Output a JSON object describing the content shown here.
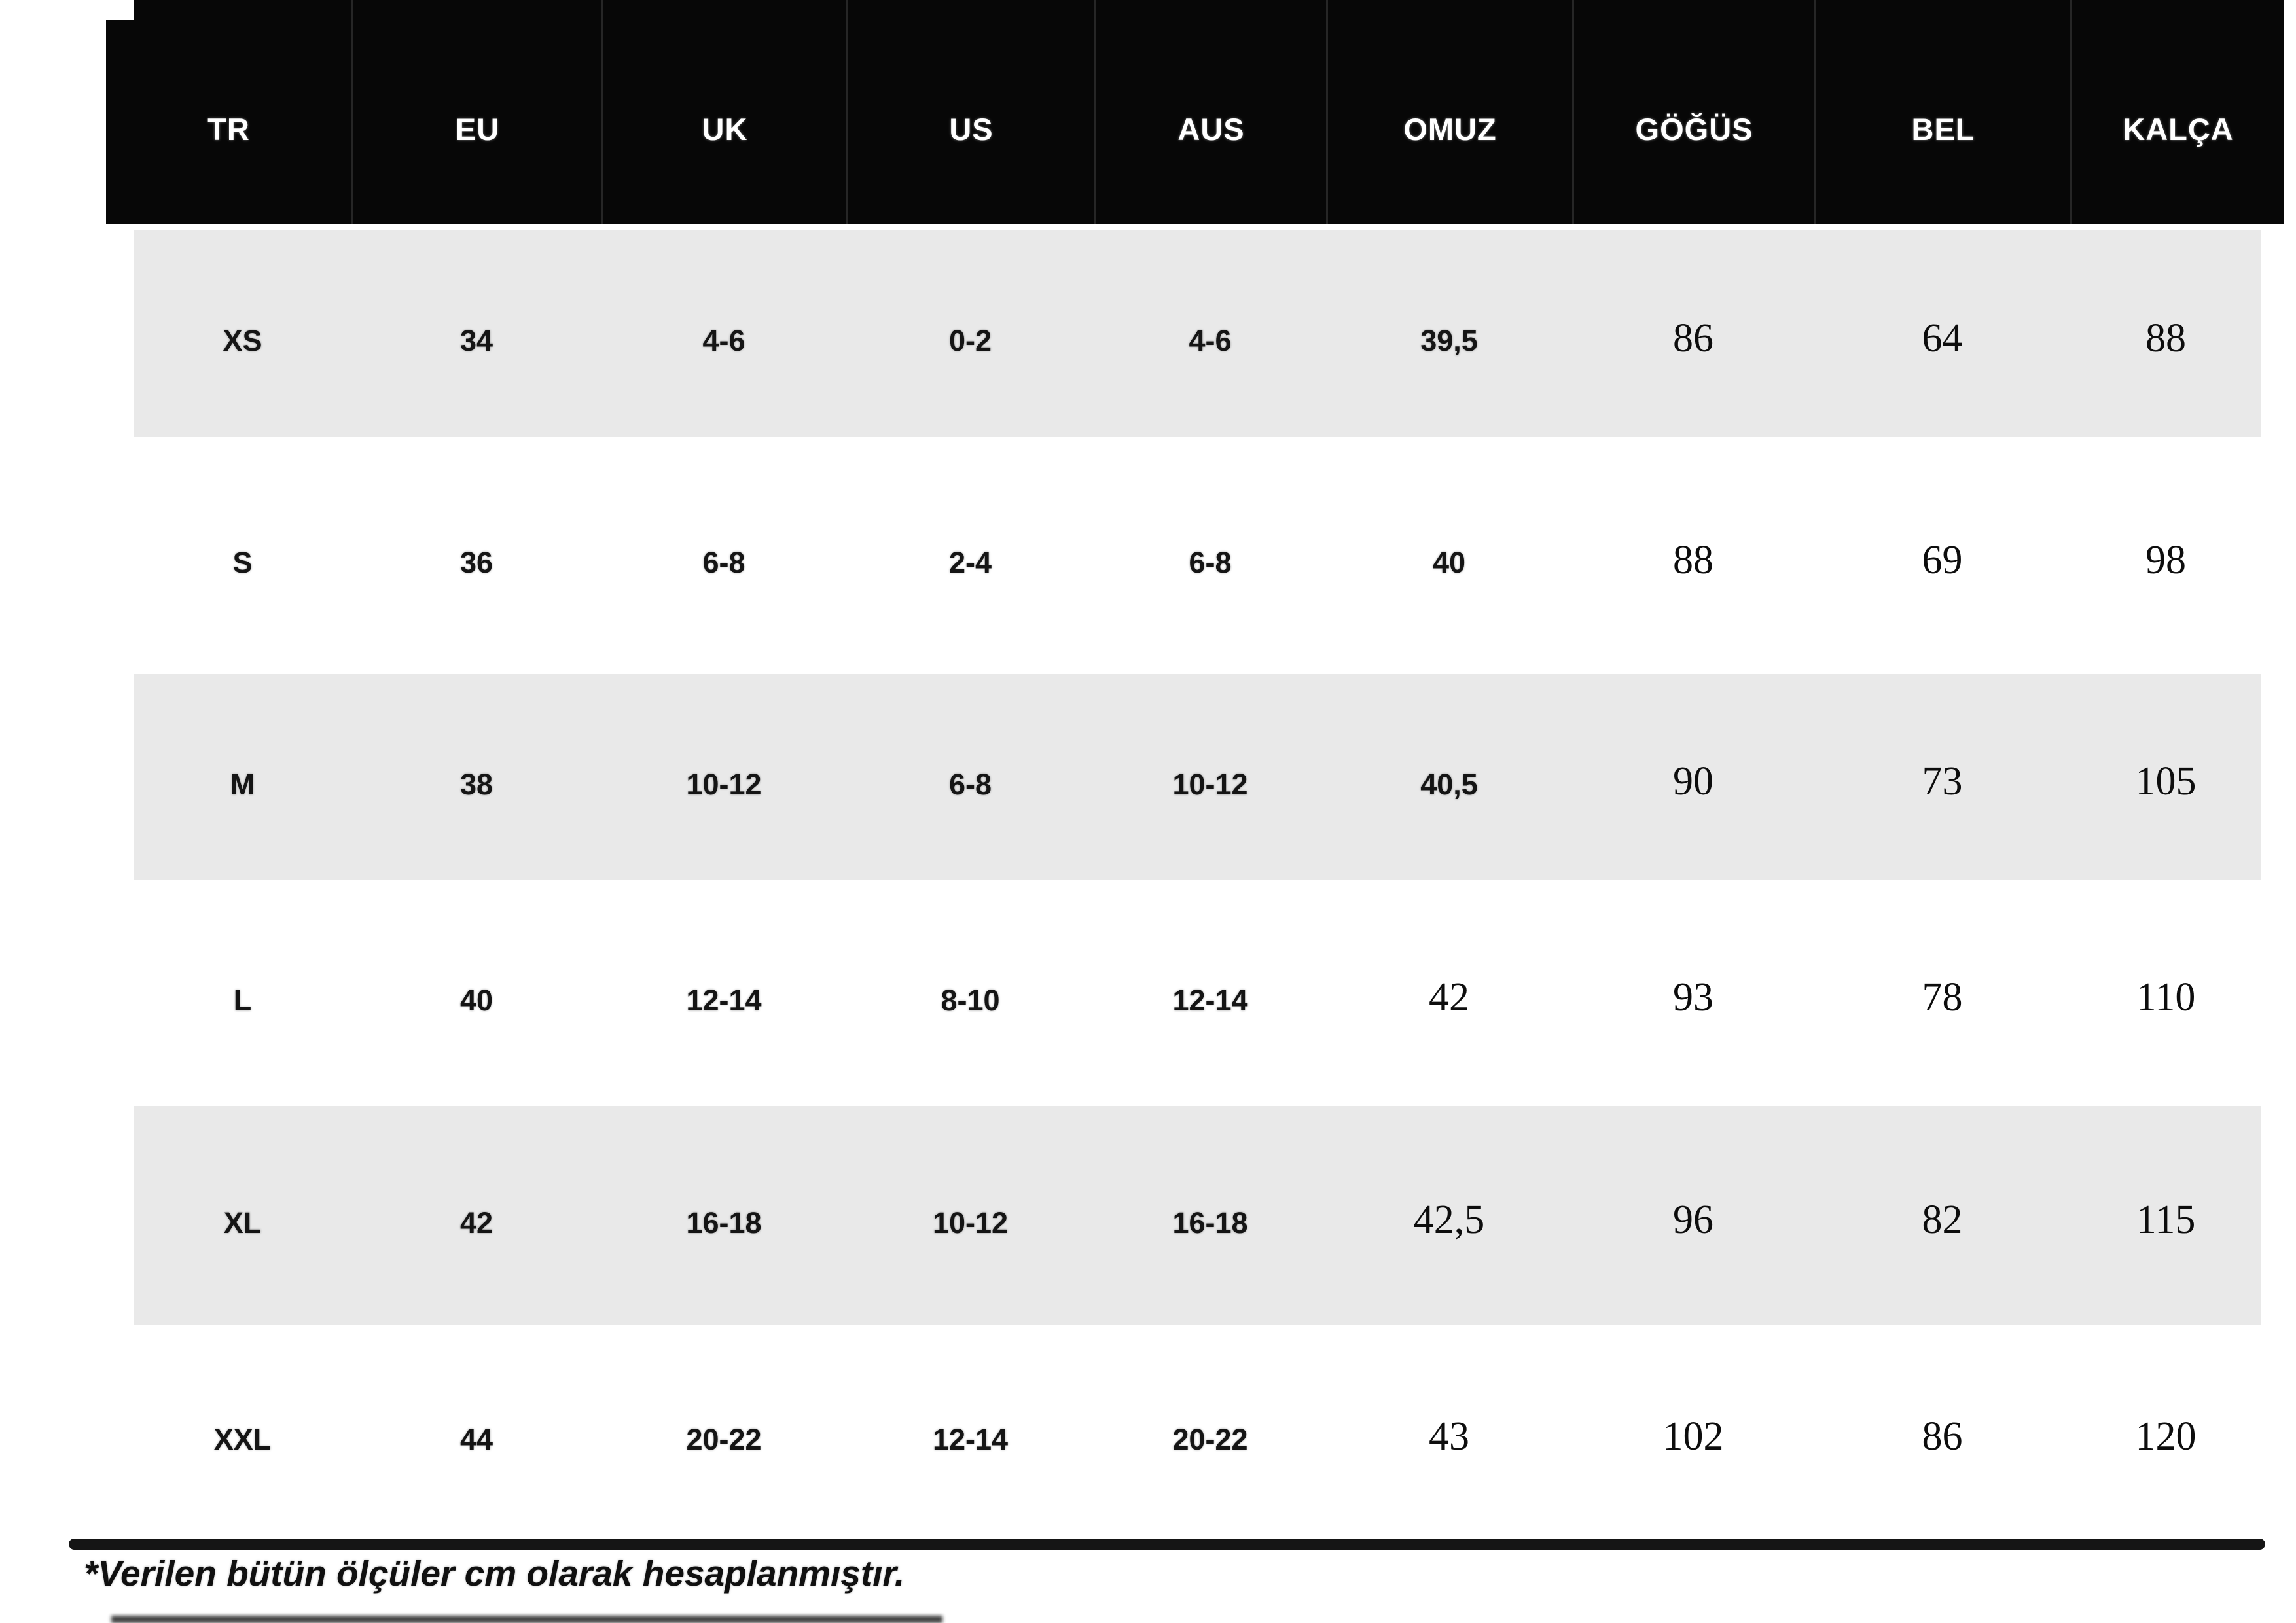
{
  "colors": {
    "header_bg": "#070707",
    "header_text": "#ffffff",
    "shaded_row_bg": "#e9e9e9",
    "plain_row_bg": "#ffffff",
    "body_text": "#111111",
    "rule": "#151515"
  },
  "chart_data": {
    "type": "table",
    "title": "",
    "columns": [
      "TR",
      "EU",
      "UK",
      "US",
      "AUS",
      "OMUZ",
      "GÖĞÜS",
      "BEL",
      "KALÇA"
    ],
    "rows": [
      {
        "cells": [
          "XS",
          "34",
          "4-6",
          "0-2",
          "4-6",
          "39,5",
          "86",
          "64",
          "88"
        ],
        "serif_from": 6
      },
      {
        "cells": [
          "S",
          "36",
          "6-8",
          "2-4",
          "6-8",
          "40",
          "88",
          "69",
          "98"
        ],
        "serif_from": 6
      },
      {
        "cells": [
          "M",
          "38",
          "10-12",
          "6-8",
          "10-12",
          "40,5",
          "90",
          "73",
          "105"
        ],
        "serif_from": 6
      },
      {
        "cells": [
          "L",
          "40",
          "12-14",
          "8-10",
          "12-14",
          "42",
          "93",
          "78",
          "110"
        ],
        "serif_from": 5
      },
      {
        "cells": [
          "XL",
          "42",
          "16-18",
          "10-12",
          "16-18",
          "42,5",
          "96",
          "82",
          "115"
        ],
        "serif_from": 5
      },
      {
        "cells": [
          "XXL",
          "44",
          "20-22",
          "12-14",
          "20-22",
          "43",
          "102",
          "86",
          "120"
        ],
        "serif_from": 5
      }
    ],
    "footnote": "*Verilen bütün ölçüler cm olarak hesaplanmıştır.",
    "layout_hints": {
      "shaded_rows": [
        "XS",
        "M",
        "XL"
      ],
      "grid": "off",
      "header_position": "top"
    }
  }
}
